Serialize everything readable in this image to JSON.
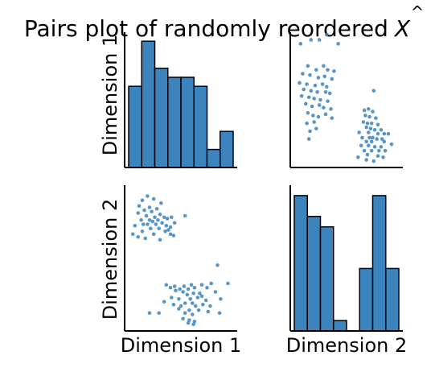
{
  "chart_data": {
    "type": "pairs",
    "title": "Pairs plot of randomly reordered",
    "title_symbol": "X",
    "title_symbol_accent": "^",
    "variables": [
      "Dimension 1",
      "Dimension 2"
    ],
    "color": "#3c84be",
    "bar_edge_color": "#000000",
    "grid": false,
    "x_range": [
      0,
      1
    ],
    "y_range": [
      0,
      1
    ],
    "panels": [
      {
        "row": 0,
        "col": 0,
        "type": "histogram",
        "x_variable": "Dimension 1",
        "bins": 8,
        "counts": [
          9,
          14,
          11,
          10,
          10,
          9,
          2,
          4
        ],
        "ylim": [
          0,
          15
        ]
      },
      {
        "row": 0,
        "col": 1,
        "type": "scatter",
        "x_variable": "Dimension 2",
        "y_variable": "Dimension 1",
        "points": [
          [
            0.06,
            0.93
          ],
          [
            0.16,
            0.96
          ],
          [
            0.24,
            0.96
          ],
          [
            0.31,
            1.0
          ],
          [
            0.42,
            0.93
          ],
          [
            0.13,
            0.76
          ],
          [
            0.21,
            0.73
          ],
          [
            0.28,
            0.76
          ],
          [
            0.32,
            0.73
          ],
          [
            0.38,
            0.72
          ],
          [
            0.08,
            0.7
          ],
          [
            0.15,
            0.69
          ],
          [
            0.23,
            0.67
          ],
          [
            0.29,
            0.68
          ],
          [
            0.36,
            0.66
          ],
          [
            0.05,
            0.63
          ],
          [
            0.12,
            0.62
          ],
          [
            0.2,
            0.61
          ],
          [
            0.27,
            0.62
          ],
          [
            0.31,
            0.6
          ],
          [
            0.09,
            0.58
          ],
          [
            0.16,
            0.57
          ],
          [
            0.22,
            0.56
          ],
          [
            0.3,
            0.56
          ],
          [
            0.34,
            0.55
          ],
          [
            0.07,
            0.53
          ],
          [
            0.14,
            0.52
          ],
          [
            0.19,
            0.51
          ],
          [
            0.25,
            0.5
          ],
          [
            0.32,
            0.49
          ],
          [
            0.11,
            0.47
          ],
          [
            0.17,
            0.45
          ],
          [
            0.24,
            0.46
          ],
          [
            0.28,
            0.44
          ],
          [
            0.35,
            0.43
          ],
          [
            0.13,
            0.4
          ],
          [
            0.18,
            0.38
          ],
          [
            0.23,
            0.37
          ],
          [
            0.3,
            0.39
          ],
          [
            0.36,
            0.36
          ],
          [
            0.12,
            0.32
          ],
          [
            0.19,
            0.33
          ],
          [
            0.15,
            0.26
          ],
          [
            0.21,
            0.28
          ],
          [
            0.14,
            0.2
          ],
          [
            0.76,
            0.57
          ],
          [
            0.67,
            0.42
          ],
          [
            0.71,
            0.43
          ],
          [
            0.75,
            0.41
          ],
          [
            0.68,
            0.38
          ],
          [
            0.72,
            0.37
          ],
          [
            0.78,
            0.36
          ],
          [
            0.66,
            0.33
          ],
          [
            0.7,
            0.32
          ],
          [
            0.74,
            0.32
          ],
          [
            0.8,
            0.31
          ],
          [
            0.69,
            0.29
          ],
          [
            0.73,
            0.28
          ],
          [
            0.77,
            0.27
          ],
          [
            0.83,
            0.27
          ],
          [
            0.62,
            0.25
          ],
          [
            0.71,
            0.25
          ],
          [
            0.8,
            0.24
          ],
          [
            0.86,
            0.24
          ],
          [
            0.9,
            0.24
          ],
          [
            0.65,
            0.21
          ],
          [
            0.72,
            0.21
          ],
          [
            0.75,
            0.21
          ],
          [
            0.79,
            0.2
          ],
          [
            0.84,
            0.2
          ],
          [
            0.69,
            0.18
          ],
          [
            0.74,
            0.18
          ],
          [
            0.86,
            0.18
          ],
          [
            0.93,
            0.16
          ],
          [
            0.64,
            0.15
          ],
          [
            0.71,
            0.15
          ],
          [
            0.77,
            0.14
          ],
          [
            0.83,
            0.14
          ],
          [
            0.67,
            0.11
          ],
          [
            0.74,
            0.11
          ],
          [
            0.81,
            0.11
          ],
          [
            0.87,
            0.11
          ],
          [
            0.7,
            0.08
          ],
          [
            0.8,
            0.07
          ],
          [
            0.61,
            0.06
          ],
          [
            0.85,
            0.06
          ],
          [
            0.69,
            0.04
          ],
          [
            0.76,
            0.03
          ]
        ]
      },
      {
        "row": 1,
        "col": 0,
        "type": "scatter",
        "x_variable": "Dimension 1",
        "y_variable": "Dimension 2",
        "points": [
          [
            0.18,
            0.94
          ],
          [
            0.24,
            0.92
          ],
          [
            0.13,
            0.91
          ],
          [
            0.31,
            0.89
          ],
          [
            0.1,
            0.87
          ],
          [
            0.2,
            0.86
          ],
          [
            0.27,
            0.85
          ],
          [
            0.15,
            0.84
          ],
          [
            0.22,
            0.83
          ],
          [
            0.09,
            0.82
          ],
          [
            0.3,
            0.81
          ],
          [
            0.17,
            0.8
          ],
          [
            0.25,
            0.79
          ],
          [
            0.34,
            0.79
          ],
          [
            0.41,
            0.79
          ],
          [
            0.54,
            0.8
          ],
          [
            0.12,
            0.77
          ],
          [
            0.2,
            0.77
          ],
          [
            0.28,
            0.77
          ],
          [
            0.37,
            0.78
          ],
          [
            0.23,
            0.76
          ],
          [
            0.32,
            0.75
          ],
          [
            0.14,
            0.74
          ],
          [
            0.18,
            0.74
          ],
          [
            0.26,
            0.74
          ],
          [
            0.44,
            0.75
          ],
          [
            0.06,
            0.73
          ],
          [
            0.36,
            0.73
          ],
          [
            0.4,
            0.72
          ],
          [
            0.21,
            0.71
          ],
          [
            0.29,
            0.71
          ],
          [
            0.38,
            0.7
          ],
          [
            0.13,
            0.69
          ],
          [
            0.35,
            0.69
          ],
          [
            0.04,
            0.67
          ],
          [
            0.24,
            0.67
          ],
          [
            0.4,
            0.67
          ],
          [
            0.43,
            0.66
          ],
          [
            0.09,
            0.65
          ],
          [
            0.16,
            0.64
          ],
          [
            0.3,
            0.63
          ],
          [
            0.85,
            0.45
          ],
          [
            0.36,
            0.31
          ],
          [
            0.44,
            0.3
          ],
          [
            0.53,
            0.3
          ],
          [
            0.6,
            0.31
          ],
          [
            0.7,
            0.31
          ],
          [
            0.79,
            0.32
          ],
          [
            0.95,
            0.32
          ],
          [
            0.4,
            0.29
          ],
          [
            0.49,
            0.28
          ],
          [
            0.57,
            0.28
          ],
          [
            0.63,
            0.29
          ],
          [
            0.75,
            0.29
          ],
          [
            0.45,
            0.27
          ],
          [
            0.52,
            0.26
          ],
          [
            0.62,
            0.25
          ],
          [
            0.68,
            0.25
          ],
          [
            0.83,
            0.26
          ],
          [
            0.56,
            0.24
          ],
          [
            0.7,
            0.23
          ],
          [
            0.41,
            0.22
          ],
          [
            0.48,
            0.21
          ],
          [
            0.59,
            0.21
          ],
          [
            0.66,
            0.22
          ],
          [
            0.74,
            0.2
          ],
          [
            0.88,
            0.21
          ],
          [
            0.34,
            0.19
          ],
          [
            0.54,
            0.18
          ],
          [
            0.61,
            0.18
          ],
          [
            0.71,
            0.17
          ],
          [
            0.43,
            0.17
          ],
          [
            0.5,
            0.16
          ],
          [
            0.64,
            0.16
          ],
          [
            0.78,
            0.16
          ],
          [
            0.48,
            0.14
          ],
          [
            0.58,
            0.13
          ],
          [
            0.67,
            0.13
          ],
          [
            0.76,
            0.12
          ],
          [
            0.2,
            0.11
          ],
          [
            0.29,
            0.11
          ],
          [
            0.54,
            0.11
          ],
          [
            0.61,
            0.1
          ],
          [
            0.87,
            0.11
          ],
          [
            0.52,
            0.07
          ],
          [
            0.58,
            0.06
          ],
          [
            0.63,
            0.05
          ],
          [
            0.57,
            0.04
          ],
          [
            0.62,
            0.03
          ]
        ]
      },
      {
        "row": 1,
        "col": 1,
        "type": "histogram",
        "x_variable": "Dimension 2",
        "bins": 8,
        "counts": [
          13,
          11,
          10,
          1,
          0,
          6,
          13,
          6
        ],
        "ylim": [
          0,
          14
        ]
      }
    ]
  }
}
